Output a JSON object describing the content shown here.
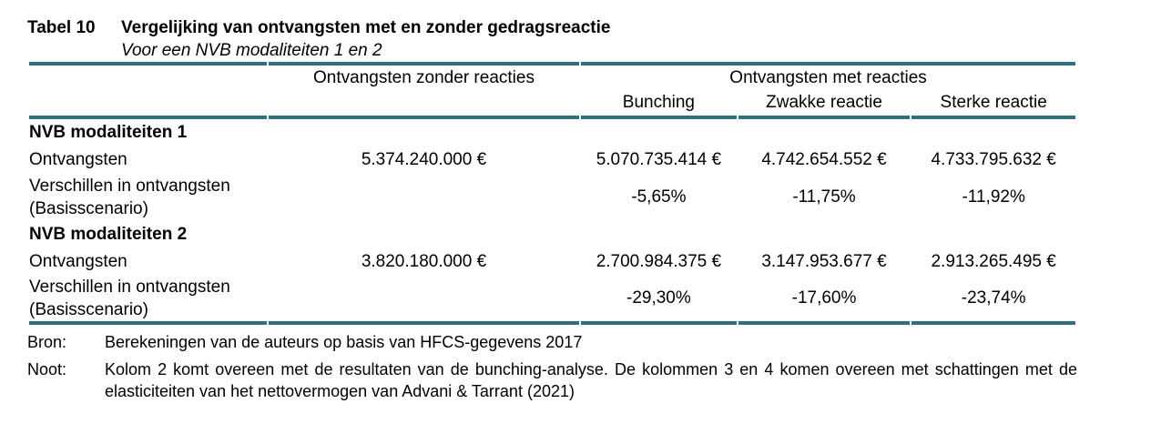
{
  "doc": {
    "table_label": "Tabel 10",
    "title": "Vergelijking van ontvangsten met en zonder gedragsreactie",
    "subtitle": "Voor een NVB modaliteiten 1 en 2"
  },
  "header": {
    "zonder": "Ontvangsten zonder reacties",
    "met_group": "Ontvangsten met reacties",
    "sub": [
      "Bunching",
      "Zwakke reactie",
      "Sterke reactie"
    ]
  },
  "rows": {
    "sec1": {
      "title": "NVB modaliteiten 1",
      "ontvangsten": {
        "label": "Ontvangsten",
        "zonder": "5.374.240.000 €",
        "bunching": "5.070.735.414 €",
        "zwakke": "4.742.654.552 €",
        "sterke": "4.733.795.632 €"
      },
      "verschillen": {
        "label_line1": "Verschillen in ontvangsten",
        "label_line2": "(Basisscenario)",
        "bunching": "-5,65%",
        "zwakke": "-11,75%",
        "sterke": "-11,92%"
      }
    },
    "sec2": {
      "title": "NVB modaliteiten 2",
      "ontvangsten": {
        "label": "Ontvangsten",
        "zonder": "3.820.180.000 €",
        "bunching": "2.700.984.375 €",
        "zwakke": "3.147.953.677 €",
        "sterke": "2.913.265.495 €"
      },
      "verschillen": {
        "label_line1": "Verschillen in ontvangsten",
        "label_line2": "(Basisscenario)",
        "bunching": "-29,30%",
        "zwakke": "-17,60%",
        "sterke": "-23,74%"
      }
    }
  },
  "notes": {
    "bron_label": "Bron:",
    "bron_text": "Berekeningen van de auteurs op basis van HFCS-gegevens 2017",
    "noot_label": "Noot:",
    "noot_text": "Kolom 2 komt overeen met de resultaten van de bunching-analyse. De kolommen 3 en 4 komen overeen met schattingen met de elasticiteiten van het nettovermogen van Advani & Tarrant (2021)"
  },
  "colors": {
    "rule": "#2e6f80",
    "text": "#000000",
    "background": "#ffffff"
  }
}
